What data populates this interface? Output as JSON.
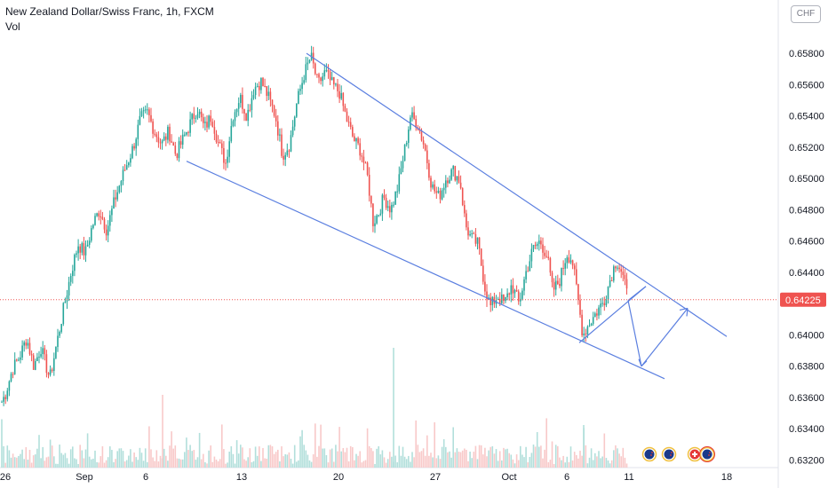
{
  "header": {
    "symbol_title": "New Zealand Dollar/Swiss Franc, 1h, FXCM",
    "volume_label": "Vol",
    "currency": "CHF"
  },
  "chart_data": {
    "type": "candlestick",
    "x_tick_labels": [
      "26",
      "Sep",
      "6",
      "13",
      "20",
      "27",
      "Oct",
      "6",
      "11",
      "18"
    ],
    "y_tick_labels": [
      "0.65800",
      "0.65600",
      "0.65400",
      "0.65200",
      "0.65000",
      "0.64800",
      "0.64600",
      "0.64400",
      "0.64000",
      "0.63800",
      "0.63600",
      "0.63400",
      "0.63200"
    ],
    "y_ticks": [
      0.658,
      0.656,
      0.654,
      0.652,
      0.65,
      0.648,
      0.646,
      0.644,
      0.64,
      0.638,
      0.636,
      0.634,
      0.632
    ],
    "ylim": [
      0.6318,
      0.6605
    ],
    "current_price": 0.64225,
    "current_price_label": "0.64225",
    "colors": {
      "up": "#26a69a",
      "down": "#ef5350",
      "up_volume": "#b2dfdb",
      "down_volume": "#f8c9c9",
      "trendline": "#5b7fe0",
      "price_line": "#ef5350",
      "axis_text": "#131722"
    },
    "close_path": [
      [
        0,
        0.6355
      ],
      [
        6,
        0.6362
      ],
      [
        14,
        0.6378
      ],
      [
        22,
        0.6386
      ],
      [
        30,
        0.6398
      ],
      [
        38,
        0.638
      ],
      [
        46,
        0.6392
      ],
      [
        56,
        0.6372
      ],
      [
        64,
        0.6395
      ],
      [
        72,
        0.6418
      ],
      [
        80,
        0.644
      ],
      [
        88,
        0.6458
      ],
      [
        96,
        0.6452
      ],
      [
        104,
        0.647
      ],
      [
        112,
        0.648
      ],
      [
        120,
        0.6467
      ],
      [
        130,
        0.6488
      ],
      [
        140,
        0.6505
      ],
      [
        150,
        0.652
      ],
      [
        158,
        0.6538
      ],
      [
        166,
        0.6542
      ],
      [
        174,
        0.653
      ],
      [
        182,
        0.6522
      ],
      [
        190,
        0.653
      ],
      [
        198,
        0.6515
      ],
      [
        206,
        0.6525
      ],
      [
        214,
        0.6535
      ],
      [
        222,
        0.6545
      ],
      [
        230,
        0.6532
      ],
      [
        238,
        0.654
      ],
      [
        246,
        0.6522
      ],
      [
        254,
        0.651
      ],
      [
        262,
        0.654
      ],
      [
        270,
        0.6552
      ],
      [
        278,
        0.654
      ],
      [
        286,
        0.6558
      ],
      [
        294,
        0.6562
      ],
      [
        302,
        0.6552
      ],
      [
        310,
        0.654
      ],
      [
        318,
        0.6515
      ],
      [
        326,
        0.6522
      ],
      [
        334,
        0.6548
      ],
      [
        342,
        0.6566
      ],
      [
        350,
        0.6578
      ],
      [
        358,
        0.656
      ],
      [
        366,
        0.6568
      ],
      [
        374,
        0.656
      ],
      [
        382,
        0.6555
      ],
      [
        390,
        0.6538
      ],
      [
        398,
        0.6525
      ],
      [
        406,
        0.6518
      ],
      [
        414,
        0.65
      ],
      [
        420,
        0.6472
      ],
      [
        426,
        0.6478
      ],
      [
        432,
        0.6488
      ],
      [
        440,
        0.648
      ],
      [
        448,
        0.6495
      ],
      [
        456,
        0.652
      ],
      [
        462,
        0.654
      ],
      [
        470,
        0.6535
      ],
      [
        478,
        0.652
      ],
      [
        486,
        0.6495
      ],
      [
        494,
        0.6488
      ],
      [
        502,
        0.65
      ],
      [
        510,
        0.6505
      ],
      [
        518,
        0.6498
      ],
      [
        524,
        0.647
      ],
      [
        530,
        0.6462
      ],
      [
        538,
        0.6458
      ],
      [
        546,
        0.643
      ],
      [
        552,
        0.6418
      ],
      [
        560,
        0.6425
      ],
      [
        568,
        0.642
      ],
      [
        576,
        0.6432
      ],
      [
        584,
        0.642
      ],
      [
        592,
        0.644
      ],
      [
        600,
        0.6455
      ],
      [
        608,
        0.646
      ],
      [
        616,
        0.645
      ],
      [
        622,
        0.6428
      ],
      [
        630,
        0.6435
      ],
      [
        638,
        0.6452
      ],
      [
        644,
        0.6448
      ],
      [
        650,
        0.6425
      ],
      [
        656,
        0.64
      ],
      [
        664,
        0.6408
      ],
      [
        672,
        0.6415
      ],
      [
        680,
        0.6422
      ],
      [
        688,
        0.6438
      ],
      [
        694,
        0.6448
      ],
      [
        700,
        0.644
      ],
      [
        706,
        0.6425
      ]
    ],
    "trendlines": [
      {
        "name": "upper",
        "from": [
          345,
          0.658
        ],
        "to": [
          818,
          0.6399
        ]
      },
      {
        "name": "lower",
        "from": [
          210,
          0.6511
        ],
        "to": [
          748,
          0.6372
        ]
      },
      {
        "name": "wedge-base",
        "from": [
          652,
          0.6395
        ],
        "to": [
          727,
          0.6431
        ]
      },
      {
        "name": "projection-down",
        "from": [
          707,
          0.6422
        ],
        "to": [
          722,
          0.638
        ]
      },
      {
        "name": "projection-up",
        "from": [
          722,
          0.638
        ],
        "to": [
          774,
          0.6417
        ]
      }
    ],
    "event_flags": [
      "nz-flag",
      "nz-flag",
      "ch-flag",
      "nz-flag"
    ]
  }
}
